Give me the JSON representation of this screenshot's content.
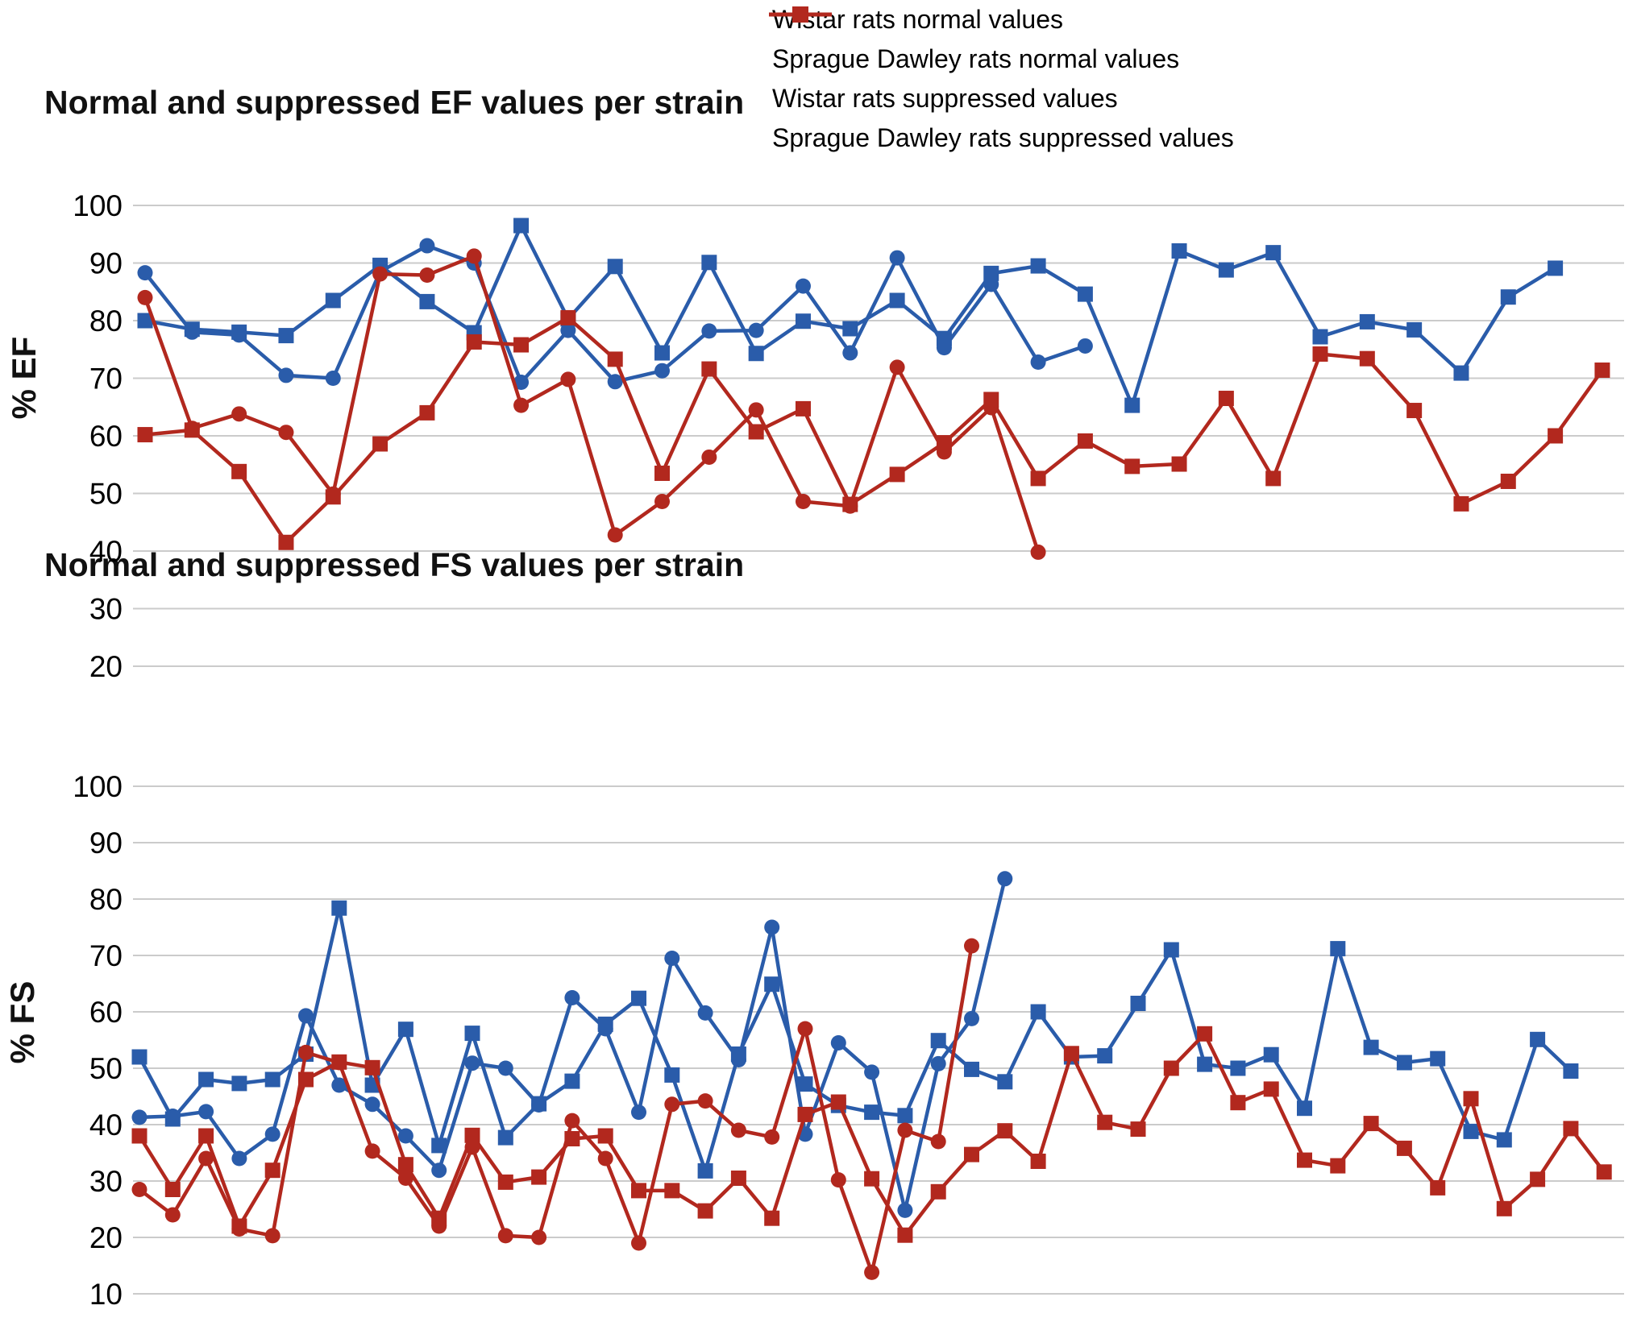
{
  "page": {
    "background": "#ffffff"
  },
  "colors": {
    "normal_blue": "#2A5CAA",
    "suppressed_red": "#B2281E",
    "gridline": "#CBCBCB"
  },
  "legend": {
    "items": [
      {
        "label": "Wistar rats normal values",
        "color": "#2A5CAA",
        "marker": "circle"
      },
      {
        "label": "Sprague Dawley rats normal values",
        "color": "#2A5CAA",
        "marker": "square"
      },
      {
        "label": "Wistar rats suppressed values",
        "color": "#B2281E",
        "marker": "circle"
      },
      {
        "label": "Sprague Dawley rats suppressed values",
        "color": "#B2281E",
        "marker": "square"
      }
    ]
  },
  "chart_data": [
    {
      "type": "line",
      "title": "Normal and suppressed EF values per strain",
      "ylabel": "% EF",
      "xlabel": "",
      "ylim": [
        20,
        100
      ],
      "yticks": [
        100,
        90,
        80,
        70,
        60,
        50,
        40,
        30,
        20
      ],
      "grid": true,
      "legend_position": "top-right",
      "x_is_index": true,
      "series": [
        {
          "name": "Wistar rats normal values",
          "color": "#2A5CAA",
          "marker": "circle",
          "values": [
            88.3,
            78,
            77.5,
            70.5,
            70,
            88.5,
            93,
            90,
            69.3,
            78.3,
            69.4,
            71.3,
            78.2,
            78.3,
            86,
            74.4,
            90.9,
            75.3,
            86.3,
            72.8,
            75.6
          ]
        },
        {
          "name": "Sprague Dawley rats normal values",
          "color": "#2A5CAA",
          "marker": "square",
          "values": [
            80,
            78.5,
            78,
            77.4,
            83.5,
            89.6,
            83.3,
            77.9,
            96.5,
            80.3,
            89.4,
            74.4,
            90.1,
            74.3,
            79.9,
            78.6,
            83.5,
            76.9,
            88.2,
            89.5,
            84.6,
            65.3,
            92.1,
            88.8,
            91.8,
            77.2,
            79.8,
            78.4,
            70.9,
            84.1,
            89.1
          ]
        },
        {
          "name": "Wistar rats suppressed values",
          "color": "#B2281E",
          "marker": "circle",
          "values": [
            84,
            61.3,
            63.8,
            60.6,
            49.9,
            88.1,
            87.9,
            91.2,
            65.3,
            69.8,
            42.8,
            48.6,
            56.3,
            64.5,
            48.6,
            47.8,
            71.9,
            57.2,
            64.9,
            39.8
          ]
        },
        {
          "name": "Sprague Dawley rats suppressed values",
          "color": "#B2281E",
          "marker": "square",
          "values": [
            60.2,
            61,
            53.8,
            41.5,
            49.4,
            58.6,
            64,
            76.3,
            75.8,
            80.5,
            73.3,
            53.5,
            71.6,
            60.7,
            64.7,
            48.1,
            53.3,
            58.8,
            66.3,
            52.6,
            59.1,
            54.7,
            55.1,
            66.5,
            52.6,
            74.2,
            73.4,
            64.4,
            48.2,
            52.1,
            60,
            71.4
          ]
        }
      ]
    },
    {
      "type": "line",
      "title": "Normal and suppressed FS values per strain",
      "ylabel": "% FS",
      "xlabel": "",
      "ylim": [
        10,
        100
      ],
      "yticks": [
        100,
        90,
        80,
        70,
        60,
        50,
        40,
        30,
        20,
        10
      ],
      "grid": true,
      "legend_position": "none",
      "x_is_index": true,
      "series": [
        {
          "name": "Wistar rats normal values",
          "color": "#2A5CAA",
          "marker": "circle",
          "values": [
            41.3,
            41.5,
            42.3,
            34,
            38.3,
            59.3,
            47,
            43.6,
            38,
            31.9,
            50.9,
            50,
            43.5,
            62.5,
            57,
            42.2,
            69.5,
            59.8,
            51.5,
            75,
            38.3,
            54.5,
            49.3,
            24.8,
            50.8,
            58.8,
            83.6
          ]
        },
        {
          "name": "Sprague Dawley rats normal values",
          "color": "#2A5CAA",
          "marker": "square",
          "values": [
            52,
            41,
            48,
            47.3,
            48,
            52.5,
            78.4,
            47,
            56.9,
            36.3,
            56.2,
            37.7,
            43.7,
            47.7,
            57.8,
            62.4,
            48.8,
            31.8,
            52.5,
            64.9,
            47.2,
            43.4,
            42.2,
            41.6,
            54.9,
            49.8,
            47.6,
            60,
            52,
            52.2,
            61.5,
            71,
            50.7,
            50,
            52.4,
            42.9,
            71.2,
            53.7,
            51,
            51.7,
            38.8,
            37.3,
            55.1,
            49.5
          ]
        },
        {
          "name": "Wistar rats suppressed values",
          "color": "#B2281E",
          "marker": "circle",
          "values": [
            28.5,
            24,
            34,
            21.5,
            20.3,
            52.8,
            51,
            35.3,
            30.5,
            22,
            36,
            20.3,
            20,
            40.7,
            34,
            19,
            43.6,
            44.2,
            39,
            37.8,
            57,
            30.2,
            13.8,
            39,
            37,
            71.7
          ]
        },
        {
          "name": "Sprague Dawley rats suppressed values",
          "color": "#B2281E",
          "marker": "square",
          "values": [
            38,
            28.5,
            38,
            22,
            31.9,
            48,
            51.1,
            50.1,
            32.9,
            23.4,
            38.1,
            29.8,
            30.7,
            37.5,
            38,
            28.3,
            28.3,
            24.7,
            30.5,
            23.4,
            41.8,
            44,
            30.4,
            20.4,
            28.1,
            34.7,
            38.9,
            33.5,
            52.6,
            40.4,
            39.2,
            50,
            56.1,
            43.9,
            46.3,
            33.7,
            32.7,
            40.2,
            35.8,
            28.8,
            44.6,
            25.1,
            30.3,
            39.3,
            31.6
          ]
        }
      ]
    }
  ]
}
